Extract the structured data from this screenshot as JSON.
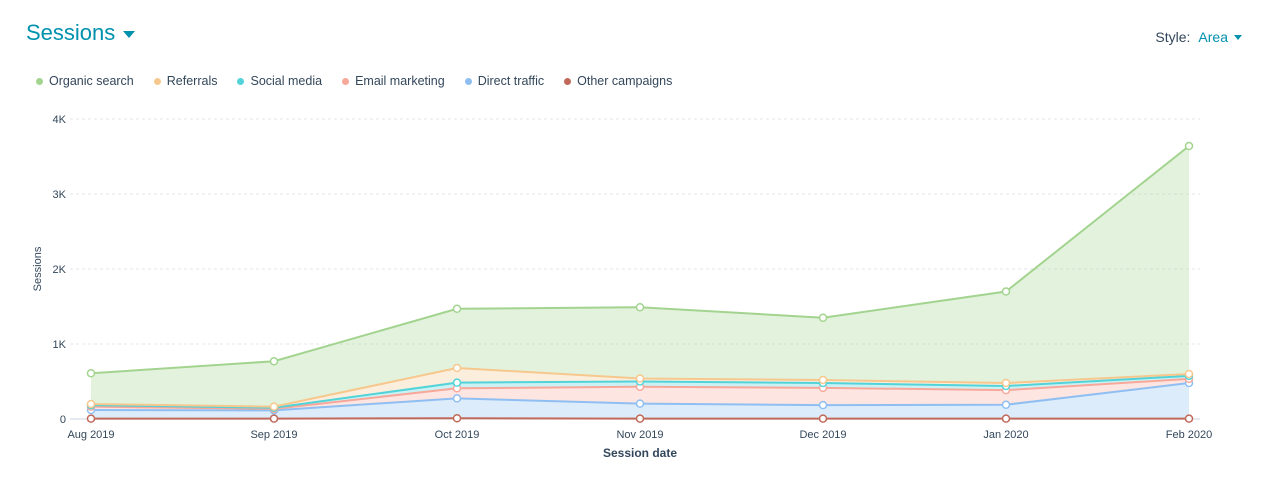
{
  "header": {
    "title": "Sessions"
  },
  "style_control": {
    "label": "Style:",
    "value": "Area"
  },
  "colors": {
    "organic": "#a3d48f",
    "referrals": "#f6c88e",
    "social": "#51d3d9",
    "email": "#f7a89a",
    "direct": "#8fbff2",
    "other": "#c0695a"
  },
  "chart_data": {
    "type": "area",
    "stacked": true,
    "title": "Sessions",
    "xlabel": "Session date",
    "ylabel": "Sessions",
    "categories": [
      "Aug 2019",
      "Sep 2019",
      "Oct 2019",
      "Nov 2019",
      "Dec 2019",
      "Jan 2020",
      "Feb 2020"
    ],
    "ylim": [
      0,
      4000
    ],
    "yticks": [
      0,
      1000,
      2000,
      3000,
      4000
    ],
    "ytick_labels": [
      "0",
      "1K",
      "2K",
      "3K",
      "4K"
    ],
    "grid": true,
    "legend_position": "top-left",
    "series": [
      {
        "name": "Other campaigns",
        "color": "#c0695a",
        "values": [
          5,
          5,
          10,
          5,
          5,
          5,
          5
        ]
      },
      {
        "name": "Direct traffic",
        "color": "#8fbff2",
        "values": [
          115,
          110,
          265,
          200,
          180,
          185,
          475
        ]
      },
      {
        "name": "Email marketing",
        "color": "#f7a89a",
        "values": [
          45,
          20,
          135,
          225,
          230,
          195,
          55
        ]
      },
      {
        "name": "Social media",
        "color": "#51d3d9",
        "values": [
          20,
          15,
          75,
          70,
          65,
          55,
          40
        ]
      },
      {
        "name": "Referrals",
        "color": "#f6c88e",
        "values": [
          15,
          15,
          195,
          40,
          40,
          40,
          25
        ]
      },
      {
        "name": "Organic search",
        "color": "#a3d48f",
        "values": [
          410,
          605,
          790,
          950,
          830,
          1220,
          3040
        ]
      }
    ],
    "legend_order": [
      "Organic search",
      "Referrals",
      "Social media",
      "Email marketing",
      "Direct traffic",
      "Other campaigns"
    ]
  }
}
